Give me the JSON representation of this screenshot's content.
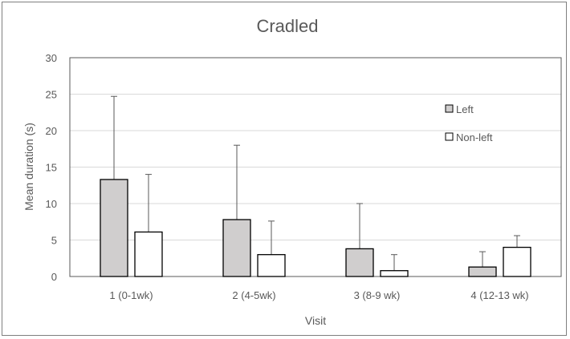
{
  "chart_data": {
    "type": "bar",
    "title": "Cradled",
    "xlabel": "Visit",
    "ylabel": "Mean duration (s)",
    "ylim": [
      0,
      30
    ],
    "yticks": [
      0,
      5,
      10,
      15,
      20,
      25,
      30
    ],
    "grid": true,
    "legend_position": "right",
    "categories": [
      "1 (0-1wk)",
      "2 (4-5wk)",
      "3 (8-9 wk)",
      "4 (12-13 wk)"
    ],
    "series": [
      {
        "name": "Left",
        "color": "#d0cece",
        "values": [
          13.3,
          7.8,
          3.8,
          1.3
        ],
        "error_upper": [
          24.7,
          18.0,
          10.0,
          3.4
        ]
      },
      {
        "name": "Non-left",
        "color": "#ffffff",
        "values": [
          6.1,
          3.0,
          0.8,
          4.0
        ],
        "error_upper": [
          14.0,
          7.6,
          3.0,
          5.6
        ]
      }
    ]
  }
}
